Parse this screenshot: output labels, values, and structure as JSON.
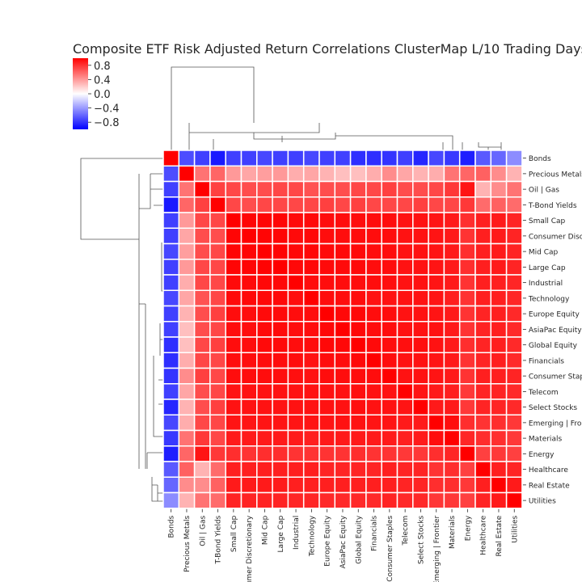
{
  "chart_data": {
    "type": "heatmap",
    "title": "Composite ETF Risk Adjusted Return Correlations ClusterMap L/10 Trading Days",
    "labels": [
      "Bonds",
      "Precious Metals",
      "Oil | Gas",
      "T-Bond Yields",
      "Small Cap",
      "Consumer Discretionary",
      "Mid Cap",
      "Large Cap",
      "Industrial",
      "Technology",
      "Europe Equity",
      "AsiaPac Equity",
      "Global Equity",
      "Financials",
      "Consumer Staples",
      "Telecom",
      "Select Stocks",
      "Emerging | Frontier",
      "Materials",
      "Energy",
      "Healthcare",
      "Real Estate",
      "Utilities"
    ],
    "colormap": {
      "min_color": "#0000ff",
      "mid_color": "#ffffff",
      "max_color": "#ff0000",
      "vmin": -1,
      "vmax": 1
    },
    "colorbar": {
      "ticks": [
        "0.8",
        "0.4",
        "0.0",
        "−0.4",
        "−0.8"
      ],
      "tick_values": [
        0.8,
        0.4,
        0.0,
        -0.4,
        -0.8
      ]
    },
    "values": [
      [
        1.0,
        -0.7,
        -0.75,
        -0.9,
        -0.75,
        -0.75,
        -0.72,
        -0.75,
        -0.75,
        -0.72,
        -0.75,
        -0.75,
        -0.82,
        -0.82,
        -0.8,
        -0.75,
        -0.85,
        -0.72,
        -0.78,
        -0.88,
        -0.65,
        -0.6,
        -0.45
      ],
      [
        -0.7,
        1.0,
        0.55,
        0.6,
        0.4,
        0.35,
        0.38,
        0.4,
        0.32,
        0.35,
        0.3,
        0.25,
        0.25,
        0.32,
        0.45,
        0.35,
        0.3,
        0.32,
        0.55,
        0.6,
        0.62,
        0.45,
        0.3
      ],
      [
        -0.75,
        0.55,
        1.0,
        0.75,
        0.72,
        0.7,
        0.7,
        0.72,
        0.72,
        0.68,
        0.7,
        0.7,
        0.72,
        0.72,
        0.75,
        0.7,
        0.7,
        0.72,
        0.78,
        0.92,
        0.3,
        0.45,
        0.55
      ],
      [
        -0.9,
        0.6,
        0.75,
        1.0,
        0.72,
        0.7,
        0.72,
        0.72,
        0.72,
        0.72,
        0.75,
        0.72,
        0.75,
        0.72,
        0.72,
        0.72,
        0.75,
        0.72,
        0.72,
        0.78,
        0.58,
        0.62,
        0.58
      ],
      [
        -0.75,
        0.4,
        0.72,
        0.72,
        1.0,
        0.98,
        0.98,
        0.98,
        0.96,
        0.96,
        0.95,
        0.95,
        0.95,
        0.95,
        0.95,
        0.93,
        0.93,
        0.92,
        0.9,
        0.82,
        0.88,
        0.9,
        0.86
      ],
      [
        -0.75,
        0.35,
        0.7,
        0.7,
        0.98,
        1.0,
        0.98,
        0.98,
        0.96,
        0.97,
        0.95,
        0.95,
        0.95,
        0.95,
        0.95,
        0.93,
        0.93,
        0.92,
        0.9,
        0.8,
        0.88,
        0.9,
        0.86
      ],
      [
        -0.72,
        0.38,
        0.7,
        0.72,
        0.98,
        0.98,
        1.0,
        0.99,
        0.97,
        0.97,
        0.96,
        0.96,
        0.96,
        0.95,
        0.95,
        0.93,
        0.93,
        0.92,
        0.9,
        0.82,
        0.88,
        0.9,
        0.86
      ],
      [
        -0.75,
        0.4,
        0.72,
        0.72,
        0.98,
        0.98,
        0.99,
        1.0,
        0.97,
        0.97,
        0.96,
        0.96,
        0.96,
        0.95,
        0.95,
        0.93,
        0.93,
        0.92,
        0.9,
        0.82,
        0.88,
        0.9,
        0.86
      ],
      [
        -0.75,
        0.32,
        0.72,
        0.72,
        0.96,
        0.96,
        0.97,
        0.97,
        1.0,
        0.95,
        0.95,
        0.95,
        0.95,
        0.95,
        0.94,
        0.93,
        0.93,
        0.92,
        0.9,
        0.8,
        0.88,
        0.88,
        0.85
      ],
      [
        -0.72,
        0.35,
        0.68,
        0.72,
        0.96,
        0.97,
        0.97,
        0.97,
        0.95,
        1.0,
        0.95,
        0.95,
        0.95,
        0.93,
        0.93,
        0.93,
        0.93,
        0.92,
        0.88,
        0.8,
        0.88,
        0.88,
        0.85
      ],
      [
        -0.75,
        0.3,
        0.7,
        0.75,
        0.95,
        0.95,
        0.96,
        0.96,
        0.95,
        0.95,
        1.0,
        0.97,
        0.97,
        0.95,
        0.95,
        0.93,
        0.93,
        0.92,
        0.9,
        0.8,
        0.86,
        0.88,
        0.84
      ],
      [
        -0.75,
        0.25,
        0.7,
        0.72,
        0.95,
        0.95,
        0.96,
        0.96,
        0.95,
        0.95,
        0.97,
        1.0,
        0.97,
        0.95,
        0.95,
        0.93,
        0.93,
        0.93,
        0.9,
        0.8,
        0.86,
        0.88,
        0.84
      ],
      [
        -0.82,
        0.25,
        0.72,
        0.75,
        0.95,
        0.95,
        0.96,
        0.96,
        0.95,
        0.95,
        0.97,
        0.97,
        1.0,
        0.96,
        0.95,
        0.94,
        0.94,
        0.93,
        0.9,
        0.82,
        0.86,
        0.88,
        0.84
      ],
      [
        -0.82,
        0.32,
        0.72,
        0.72,
        0.95,
        0.95,
        0.95,
        0.95,
        0.95,
        0.93,
        0.95,
        0.95,
        0.96,
        1.0,
        0.95,
        0.93,
        0.93,
        0.92,
        0.9,
        0.8,
        0.86,
        0.88,
        0.84
      ],
      [
        -0.8,
        0.45,
        0.75,
        0.72,
        0.95,
        0.95,
        0.95,
        0.95,
        0.94,
        0.93,
        0.95,
        0.95,
        0.95,
        0.95,
        1.0,
        0.93,
        0.93,
        0.92,
        0.9,
        0.8,
        0.88,
        0.88,
        0.86
      ],
      [
        -0.75,
        0.35,
        0.7,
        0.72,
        0.93,
        0.93,
        0.93,
        0.93,
        0.93,
        0.93,
        0.93,
        0.93,
        0.94,
        0.93,
        0.93,
        1.0,
        0.92,
        0.9,
        0.88,
        0.78,
        0.86,
        0.86,
        0.84
      ],
      [
        -0.85,
        0.3,
        0.7,
        0.75,
        0.93,
        0.93,
        0.93,
        0.93,
        0.93,
        0.93,
        0.93,
        0.93,
        0.94,
        0.93,
        0.93,
        0.92,
        1.0,
        0.9,
        0.9,
        0.78,
        0.86,
        0.86,
        0.84
      ],
      [
        -0.72,
        0.32,
        0.72,
        0.72,
        0.92,
        0.92,
        0.92,
        0.92,
        0.92,
        0.92,
        0.92,
        0.93,
        0.93,
        0.92,
        0.92,
        0.9,
        0.9,
        1.0,
        0.95,
        0.82,
        0.8,
        0.82,
        0.78
      ],
      [
        -0.78,
        0.55,
        0.78,
        0.72,
        0.9,
        0.9,
        0.9,
        0.9,
        0.9,
        0.88,
        0.9,
        0.9,
        0.9,
        0.9,
        0.9,
        0.88,
        0.9,
        0.95,
        1.0,
        0.85,
        0.82,
        0.82,
        0.78
      ],
      [
        -0.88,
        0.6,
        0.92,
        0.78,
        0.82,
        0.8,
        0.82,
        0.82,
        0.8,
        0.8,
        0.8,
        0.8,
        0.82,
        0.8,
        0.8,
        0.78,
        0.78,
        0.82,
        0.85,
        1.0,
        0.75,
        0.78,
        0.75
      ],
      [
        -0.65,
        0.62,
        0.3,
        0.58,
        0.88,
        0.88,
        0.88,
        0.88,
        0.88,
        0.88,
        0.86,
        0.86,
        0.86,
        0.86,
        0.88,
        0.86,
        0.86,
        0.8,
        0.82,
        0.75,
        1.0,
        0.88,
        0.86
      ],
      [
        -0.6,
        0.45,
        0.45,
        0.62,
        0.9,
        0.9,
        0.9,
        0.9,
        0.88,
        0.88,
        0.88,
        0.88,
        0.88,
        0.88,
        0.88,
        0.86,
        0.86,
        0.82,
        0.82,
        0.78,
        0.88,
        1.0,
        0.9
      ],
      [
        -0.45,
        0.3,
        0.55,
        0.58,
        0.86,
        0.86,
        0.86,
        0.86,
        0.85,
        0.85,
        0.84,
        0.84,
        0.84,
        0.84,
        0.86,
        0.84,
        0.84,
        0.78,
        0.78,
        0.75,
        0.86,
        0.9,
        1.0
      ]
    ]
  }
}
